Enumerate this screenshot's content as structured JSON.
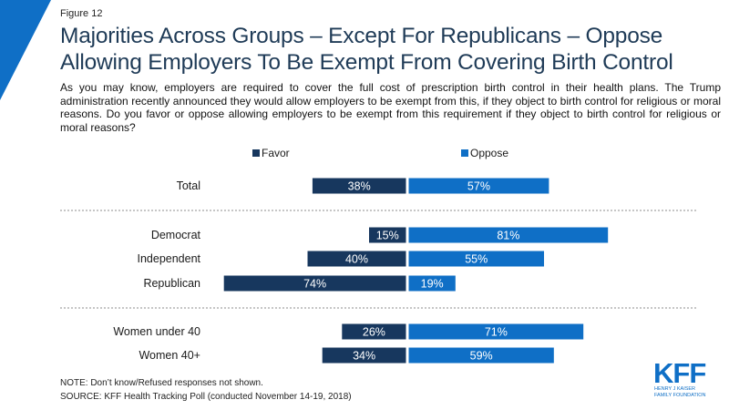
{
  "figure_label": "Figure 12",
  "title": "Majorities Across Groups – Except For Republicans – Oppose Allowing Employers To Be Exempt From Covering Birth Control",
  "subtitle": "As you may know, employers are required to cover the full cost of prescription birth control in their health plans. The Trump administration recently announced they would allow employers to be exempt from this, if they object to birth control for religious or moral reasons. Do you favor or oppose allowing employers to be exempt from this requirement if they object to birth control for religious or moral reasons?",
  "chart_data": {
    "type": "bar",
    "orientation": "horizontal-diverging",
    "categories": [
      "Total",
      "Democrat",
      "Independent",
      "Republican",
      "Women under 40",
      "Women 40+"
    ],
    "groups": [
      [
        "Total"
      ],
      [
        "Democrat",
        "Independent",
        "Republican"
      ],
      [
        "Women under 40",
        "Women 40+"
      ]
    ],
    "series": [
      {
        "name": "Favor",
        "color": "#17375e",
        "values": [
          38,
          15,
          40,
          74,
          26,
          34
        ]
      },
      {
        "name": "Oppose",
        "color": "#0f6fc6",
        "values": [
          57,
          81,
          55,
          19,
          71,
          59
        ]
      }
    ],
    "value_suffix": "%",
    "legend_position": "top",
    "grid": false
  },
  "note": "NOTE: Don’t know/Refused  responses not shown.",
  "source": "SOURCE: KFF Health Tracking Poll (conducted November 14-19, 2018)",
  "logo": {
    "main": "KFF",
    "line1": "HENRY J KAISER",
    "line2": "FAMILY FOUNDATION",
    "color": "#0f6fc6"
  }
}
